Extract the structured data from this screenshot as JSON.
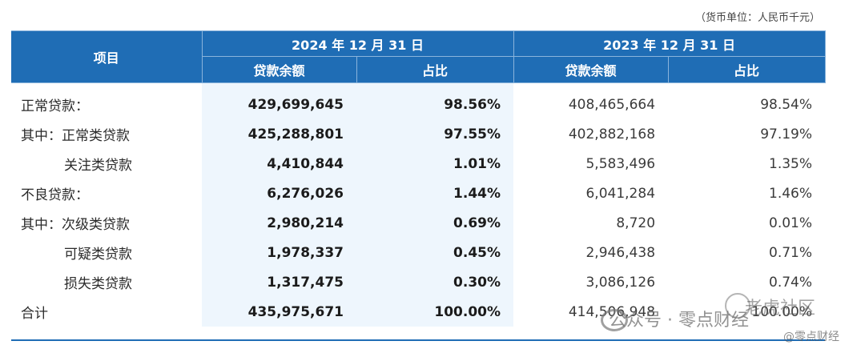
{
  "unit_note": "（货币单位：人民币千元）",
  "header": {
    "item": "项目",
    "period_2024": "2024 年 12 月 31 日",
    "period_2023": "2023 年 12 月 31 日",
    "balance_2024": "贷款余额",
    "ratio_2024": "占比",
    "balance_2023": "贷款余额",
    "ratio_2023": "占比"
  },
  "rows": [
    {
      "label": "正常贷款：",
      "balance_2024": "429,699,645",
      "ratio_2024": "98.56%",
      "balance_2023": "408,465,664",
      "ratio_2023": "98.54%"
    },
    {
      "label": "其中：正常类贷款",
      "balance_2024": "425,288,801",
      "ratio_2024": "97.55%",
      "balance_2023": "402,882,168",
      "ratio_2023": "97.19%"
    },
    {
      "label": "关注类贷款",
      "balance_2024": "4,410,844",
      "ratio_2024": "1.01%",
      "balance_2023": "5,583,496",
      "ratio_2023": "1.35%"
    },
    {
      "label": "不良贷款：",
      "balance_2024": "6,276,026",
      "ratio_2024": "1.44%",
      "balance_2023": "6,041,284",
      "ratio_2023": "1.46%"
    },
    {
      "label": "其中：次级类贷款",
      "balance_2024": "2,980,214",
      "ratio_2024": "0.69%",
      "balance_2023": "8,720",
      "ratio_2023": "0.01%"
    },
    {
      "label": "可疑类贷款",
      "balance_2024": "1,978,337",
      "ratio_2024": "0.45%",
      "balance_2023": "2,946,438",
      "ratio_2023": "0.71%"
    },
    {
      "label": "损失类贷款",
      "balance_2024": "1,317,475",
      "ratio_2024": "0.30%",
      "balance_2023": "3,086,126",
      "ratio_2023": "0.74%"
    },
    {
      "label": "合计",
      "balance_2024": "435,975,671",
      "ratio_2024": "100.00%",
      "balance_2023": "414,506,948",
      "ratio_2023": "100.00%"
    }
  ],
  "watermark": {
    "account": "公众号 · 零点财经",
    "site": "老虎社区",
    "handle": "@零点财经"
  }
}
